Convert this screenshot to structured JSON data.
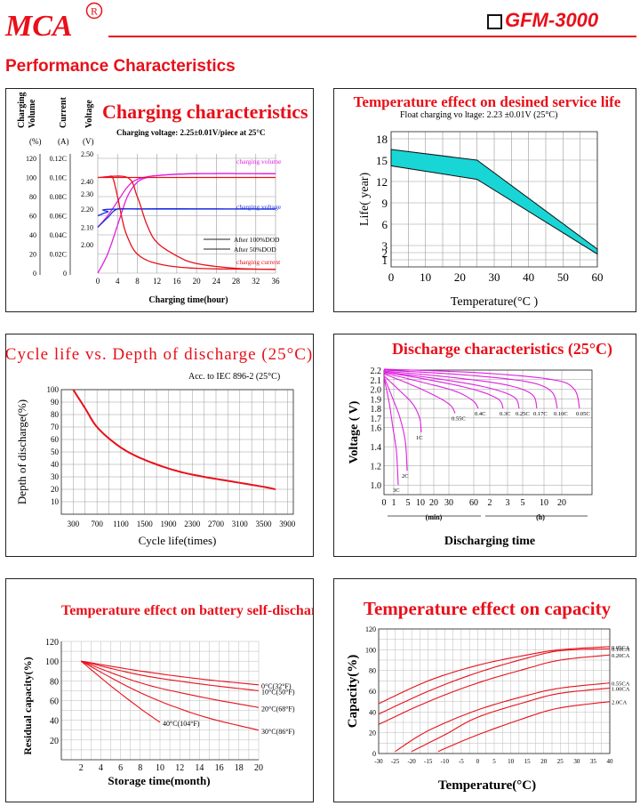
{
  "header": {
    "brand": "MCA",
    "registered_mark": "R",
    "model": "GFM-3000",
    "section_title": "Performance Characteristics",
    "accent_color": "#e8101a"
  },
  "chart_data": [
    {
      "id": "charging",
      "type": "line",
      "title": "Charging characteristics",
      "subtitle": "Charging voltage: 2.25±0.01V/piece at 25°C",
      "xlabel": "Charging time(hour)",
      "x_ticks": [
        "0",
        "4",
        "8",
        "12",
        "16",
        "20",
        "24",
        "28",
        "32",
        "36"
      ],
      "xlim": [
        0,
        36
      ],
      "axis_headers": {
        "volume": "Charging Volume",
        "current": "Current",
        "voltage": "Voltage"
      },
      "axis_units": {
        "volume": "(%)",
        "current": "(A)",
        "voltage": "(V)"
      },
      "volume_ticks": [
        "120",
        "100",
        "80",
        "60",
        "40",
        "20",
        "0"
      ],
      "current_ticks": [
        "0.12C",
        "0.10C",
        "0.08C",
        "0.06C",
        "0.04C",
        "0.02C",
        "0"
      ],
      "voltage_ticks": [
        "2.50",
        "2.40",
        "2.30",
        "2.20",
        "2.10",
        "2.00"
      ],
      "ylim_volume": [
        0,
        120
      ],
      "legend": [
        {
          "label": "After 100%DOD",
          "color": "#222222",
          "style": "solid"
        },
        {
          "label": "After 50%DOD",
          "color": "#222222",
          "style": "solid"
        }
      ],
      "series": [
        {
          "name": "charging volume",
          "color": "#e020e0",
          "points": [
            [
              0,
              0
            ],
            [
              2,
              20
            ],
            [
              4,
              50
            ],
            [
              6,
              80
            ],
            [
              8,
              95
            ],
            [
              10,
              100
            ],
            [
              12,
              102
            ],
            [
              20,
              104
            ],
            [
              36,
              104
            ]
          ]
        },
        {
          "name": "charging volume",
          "color": "#e020e0",
          "points": [
            [
              0,
              48
            ],
            [
              2,
              60
            ],
            [
              4,
              75
            ],
            [
              6,
              90
            ],
            [
              8,
              98
            ],
            [
              12,
              102
            ],
            [
              20,
              104
            ],
            [
              36,
              104
            ]
          ]
        },
        {
          "name": "charging voltage",
          "color": "#1a2ee0",
          "points": [
            [
              0,
              48
            ],
            [
              2,
              58
            ],
            [
              4,
              67
            ],
            [
              8,
              67
            ],
            [
              36,
              67
            ]
          ]
        },
        {
          "name": "charging voltage",
          "color": "#1a2ee0",
          "points": [
            [
              0,
              60
            ],
            [
              2,
              64
            ],
            [
              4,
              67
            ],
            [
              36,
              67
            ]
          ]
        },
        {
          "name": "charging current",
          "color": "#e8101a",
          "points": [
            [
              0,
              100
            ],
            [
              6,
              100
            ],
            [
              8,
              80
            ],
            [
              10,
              50
            ],
            [
              12,
              32
            ],
            [
              16,
              18
            ],
            [
              20,
              10
            ],
            [
              28,
              5
            ],
            [
              36,
              4
            ]
          ]
        },
        {
          "name": "charging current",
          "color": "#e8101a",
          "points": [
            [
              2,
              100
            ],
            [
              3,
              100
            ],
            [
              4,
              80
            ],
            [
              5,
              55
            ],
            [
              6,
              38
            ],
            [
              8,
              20
            ],
            [
              12,
              10
            ],
            [
              20,
              5
            ],
            [
              36,
              4
            ]
          ]
        },
        {
          "name": "charging current",
          "color": "#e8101a",
          "points": [
            [
              0,
              100
            ],
            [
              36,
              100
            ]
          ]
        }
      ],
      "annotations": [
        "charging volume",
        "charging voltage",
        "charging current"
      ]
    },
    {
      "id": "service-life",
      "type": "area",
      "title": "Temperature effect on desined service life",
      "subtitle": "Float charging vo ltage: 2.23 ±0.01V (25°C)",
      "xlabel": "Temperature(°C )",
      "ylabel": "Life( year)",
      "x_ticks": [
        "0",
        "10",
        "20",
        "30",
        "40",
        "50",
        "60"
      ],
      "y_ticks": [
        "1",
        "2",
        "3",
        "6",
        "9",
        "12",
        "15",
        "18"
      ],
      "xlim": [
        0,
        60
      ],
      "ylim": [
        0,
        19
      ],
      "fill_color": "#19d6d6",
      "upper": [
        [
          0,
          16.5
        ],
        [
          25,
          15
        ],
        [
          60,
          2.5
        ]
      ],
      "lower": [
        [
          0,
          14.2
        ],
        [
          25,
          12.3
        ],
        [
          60,
          1.8
        ]
      ]
    },
    {
      "id": "cycle-life",
      "type": "line",
      "title": "Cycle life vs. Depth of discharge (25°C)",
      "subtitle": "Acc. to IEC 896-2 (25°C)",
      "xlabel": "Cycle life(times)",
      "ylabel": "Depth of discharge(%)",
      "x_ticks": [
        "300",
        "700",
        "1100",
        "1500",
        "1900",
        "2300",
        "2700",
        "3100",
        "3500",
        "3900"
      ],
      "y_ticks": [
        "10",
        "20",
        "30",
        "40",
        "50",
        "60",
        "70",
        "80",
        "90",
        "100"
      ],
      "xlim": [
        100,
        4000
      ],
      "ylim": [
        0,
        100
      ],
      "series": [
        {
          "name": "",
          "color": "#e8101a",
          "points": [
            [
              300,
              100
            ],
            [
              500,
              85
            ],
            [
              700,
              70
            ],
            [
              1000,
              57
            ],
            [
              1300,
              48
            ],
            [
              1700,
              40
            ],
            [
              2100,
              34
            ],
            [
              2500,
              30
            ],
            [
              3000,
              26
            ],
            [
              3500,
              22
            ],
            [
              3700,
              20
            ]
          ]
        }
      ]
    },
    {
      "id": "discharge",
      "type": "line",
      "title": "Discharge characteristics (25°C)",
      "xlabel": "Discharging time",
      "ylabel": "Voltage ( V)",
      "y_ticks": [
        "1.0",
        "1.2",
        "1.4",
        "1.6",
        "1.7",
        "1.8",
        "1.9",
        "2.0",
        "2.1",
        "2.2"
      ],
      "x_ticks": [
        "0",
        "1",
        "5",
        "10",
        "20",
        "30",
        "60",
        "2",
        "3",
        "5",
        "10",
        "20"
      ],
      "x_unit_min": "(min)",
      "x_unit_h": "(h)",
      "ylim": [
        0.9,
        2.2
      ],
      "series": [
        {
          "name": "3C",
          "color": "#e020e0",
          "end_label": "3C",
          "points": [
            [
              0,
              2.12
            ],
            [
              6,
              1.85
            ],
            [
              10,
              1.6
            ],
            [
              14,
              1.35
            ],
            [
              16,
              1.0
            ]
          ]
        },
        {
          "name": "2C",
          "color": "#e020e0",
          "end_label": "2C",
          "points": [
            [
              0,
              2.13
            ],
            [
              10,
              1.9
            ],
            [
              18,
              1.7
            ],
            [
              24,
              1.45
            ],
            [
              26,
              1.15
            ]
          ]
        },
        {
          "name": "1C",
          "color": "#e020e0",
          "end_label": "1C",
          "points": [
            [
              0,
              2.14
            ],
            [
              16,
              2.0
            ],
            [
              32,
              1.85
            ],
            [
              40,
              1.7
            ],
            [
              42,
              1.55
            ]
          ]
        },
        {
          "name": "0.55C",
          "color": "#e020e0",
          "end_label": "0.55C",
          "points": [
            [
              0,
              2.16
            ],
            [
              30,
              2.05
            ],
            [
              60,
              1.92
            ],
            [
              75,
              1.83
            ],
            [
              80,
              1.75
            ]
          ]
        },
        {
          "name": "0.4C",
          "color": "#e020e0",
          "end_label": "0.4C",
          "points": [
            [
              0,
              2.17
            ],
            [
              40,
              2.08
            ],
            [
              80,
              1.98
            ],
            [
              100,
              1.88
            ],
            [
              106,
              1.8
            ]
          ]
        },
        {
          "name": "0.3C",
          "color": "#e020e0",
          "end_label": "0.3C",
          "points": [
            [
              0,
              2.18
            ],
            [
              50,
              2.1
            ],
            [
              100,
              2.0
            ],
            [
              128,
              1.9
            ],
            [
              134,
              1.8
            ]
          ]
        },
        {
          "name": "0.25C",
          "color": "#e020e0",
          "end_label": "0.25C",
          "points": [
            [
              0,
              2.18
            ],
            [
              60,
              2.11
            ],
            [
              115,
              2.02
            ],
            [
              146,
              1.92
            ],
            [
              152,
              1.8
            ]
          ]
        },
        {
          "name": "0.17C",
          "color": "#e020e0",
          "end_label": "0.17C",
          "points": [
            [
              0,
              2.19
            ],
            [
              70,
              2.13
            ],
            [
              135,
              2.05
            ],
            [
              166,
              1.95
            ],
            [
              172,
              1.8
            ]
          ]
        },
        {
          "name": "0.10C",
          "color": "#e020e0",
          "end_label": "0.10C",
          "points": [
            [
              0,
              2.2
            ],
            [
              90,
              2.15
            ],
            [
              160,
              2.08
            ],
            [
              188,
              1.98
            ],
            [
              195,
              1.8
            ]
          ]
        },
        {
          "name": "0.05C",
          "color": "#e020e0",
          "end_label": "0.05C",
          "points": [
            [
              0,
              2.21
            ],
            [
              110,
              2.17
            ],
            [
              190,
              2.1
            ],
            [
              214,
              2.0
            ],
            [
              220,
              1.8
            ]
          ]
        }
      ]
    },
    {
      "id": "self-discharge",
      "type": "line",
      "title": "Temperature effect on battery self-discharge",
      "xlabel": "Storage time(month)",
      "ylabel": "Residual capacity(%)",
      "x_ticks": [
        "2",
        "4",
        "6",
        "8",
        "10",
        "12",
        "14",
        "16",
        "18",
        "20"
      ],
      "y_ticks": [
        "20",
        "40",
        "60",
        "80",
        "100",
        "120"
      ],
      "xlim": [
        0,
        20
      ],
      "ylim": [
        0,
        120
      ],
      "series": [
        {
          "name": "0°C(32°F)",
          "color": "#e8101a",
          "end_label": "0°C(32°F)",
          "points": [
            [
              2,
              100
            ],
            [
              8,
              90
            ],
            [
              14,
              82
            ],
            [
              20,
              76
            ]
          ]
        },
        {
          "name": "10°C(50°F)",
          "color": "#e8101a",
          "end_label": "10°C(50°F)",
          "points": [
            [
              2,
              100
            ],
            [
              8,
              86
            ],
            [
              14,
              77
            ],
            [
              20,
              70
            ]
          ]
        },
        {
          "name": "20°C(68°F)",
          "color": "#e8101a",
          "end_label": "20°C(68°F)",
          "points": [
            [
              2,
              100
            ],
            [
              8,
              78
            ],
            [
              14,
              64
            ],
            [
              20,
              53
            ]
          ]
        },
        {
          "name": "30°C(86°F)",
          "color": "#e8101a",
          "end_label": "30°C(86°F)",
          "points": [
            [
              2,
              100
            ],
            [
              8,
              68
            ],
            [
              14,
              45
            ],
            [
              20,
              30
            ]
          ]
        },
        {
          "name": "40°C(104°F)",
          "color": "#e8101a",
          "end_label": "40°C(104°F)",
          "points": [
            [
              2,
              100
            ],
            [
              5,
              75
            ],
            [
              8,
              52
            ],
            [
              10,
              38
            ]
          ]
        }
      ]
    },
    {
      "id": "capacity",
      "type": "line",
      "title": "Temperature effect on capacity",
      "xlabel": "Temperature(°C)",
      "ylabel": "Capacity(%)",
      "x_ticks": [
        "-30",
        "-25",
        "-20",
        "-15",
        "-10",
        "-5",
        "0",
        "5",
        "10",
        "15",
        "20",
        "25",
        "30",
        "35",
        "40"
      ],
      "y_ticks": [
        "0",
        "20",
        "40",
        "60",
        "80",
        "100",
        "120"
      ],
      "xlim": [
        -30,
        40
      ],
      "ylim": [
        0,
        120
      ],
      "series": [
        {
          "name": "0.05CA",
          "color": "#e8101a",
          "end_label": "0.05CA",
          "points": [
            [
              -30,
              48
            ],
            [
              -15,
              70
            ],
            [
              0,
              85
            ],
            [
              15,
              95
            ],
            [
              25,
              100
            ],
            [
              40,
              103
            ]
          ]
        },
        {
          "name": "0.10CA",
          "color": "#e8101a",
          "end_label": "0.10CA",
          "points": [
            [
              -30,
              38
            ],
            [
              -15,
              60
            ],
            [
              0,
              78
            ],
            [
              15,
              92
            ],
            [
              25,
              99
            ],
            [
              40,
              101
            ]
          ]
        },
        {
          "name": "0.20CA",
          "color": "#e8101a",
          "end_label": "0.20CA",
          "points": [
            [
              -30,
              28
            ],
            [
              -15,
              50
            ],
            [
              0,
              68
            ],
            [
              15,
              82
            ],
            [
              25,
              90
            ],
            [
              40,
              95
            ]
          ]
        },
        {
          "name": "0.55CA",
          "color": "#e8101a",
          "end_label": "0.55CA",
          "points": [
            [
              -25,
              2
            ],
            [
              -15,
              22
            ],
            [
              0,
              42
            ],
            [
              15,
              56
            ],
            [
              25,
              63
            ],
            [
              40,
              68
            ]
          ]
        },
        {
          "name": "1.00CA",
          "color": "#e8101a",
          "end_label": "1.00CA",
          "points": [
            [
              -20,
              2
            ],
            [
              -10,
              18
            ],
            [
              0,
              35
            ],
            [
              15,
              50
            ],
            [
              25,
              58
            ],
            [
              40,
              63
            ]
          ]
        },
        {
          "name": "2.0CA",
          "color": "#e8101a",
          "end_label": "2.0CA",
          "points": [
            [
              -12,
              2
            ],
            [
              0,
              18
            ],
            [
              15,
              35
            ],
            [
              25,
              44
            ],
            [
              40,
              50
            ]
          ]
        }
      ]
    }
  ]
}
